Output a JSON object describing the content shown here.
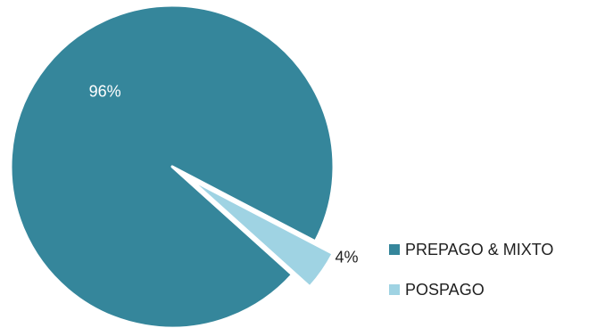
{
  "chart_data": {
    "type": "pie",
    "title": "",
    "slices": [
      {
        "name": "PREPAGO & MIXTO",
        "value": 96,
        "label": "96%",
        "color": "#35869b",
        "exploded": false
      },
      {
        "name": "POSPAGO",
        "value": 4,
        "label": "4%",
        "color": "#9fd3e3",
        "exploded": true
      }
    ],
    "legend_position": "bottom-right",
    "data_labels": true
  }
}
